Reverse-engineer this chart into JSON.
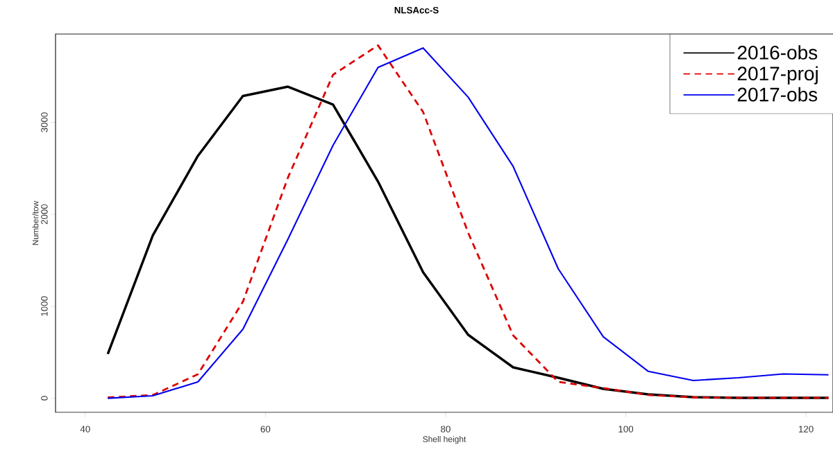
{
  "chart_data": {
    "type": "line",
    "title": "NLSAcc-S",
    "xlabel": "Shell height",
    "ylabel": "Number/tow",
    "x": [
      42.5,
      47.5,
      52.5,
      57.5,
      62.5,
      67.5,
      72.5,
      77.5,
      82.5,
      87.5,
      92.5,
      97.5,
      102.5,
      107.5,
      112.5,
      117.5,
      122.5
    ],
    "series": [
      {
        "name": "2016-obs",
        "color": "#000000",
        "line_style": "solid",
        "values": [
          481,
          1770,
          2635,
          3287,
          3388,
          3194,
          2355,
          1370,
          690,
          336,
          223,
          102,
          42,
          12,
          5,
          5,
          5
        ]
      },
      {
        "name": "2017-proj",
        "color": "#dd0000",
        "line_style": "dashed",
        "values": [
          8,
          35,
          260,
          1050,
          2400,
          3517,
          3837,
          3113,
          1800,
          683,
          178,
          110,
          35,
          10,
          5,
          5,
          5
        ]
      },
      {
        "name": "2017-obs",
        "color": "#0000ee",
        "line_style": "solid",
        "values": [
          0,
          27,
          178,
          750,
          1730,
          2750,
          3597,
          3809,
          3274,
          2520,
          1408,
          669,
          292,
          193,
          223,
          264,
          255
        ]
      }
    ],
    "xlim": [
      36.7,
      123
    ],
    "ylim": [
      -154,
      3961
    ],
    "xticks": [
      40,
      60,
      80,
      100,
      120
    ],
    "yticks": [
      0,
      1000,
      2000,
      3000
    ],
    "grid": false,
    "legend": "top right"
  }
}
